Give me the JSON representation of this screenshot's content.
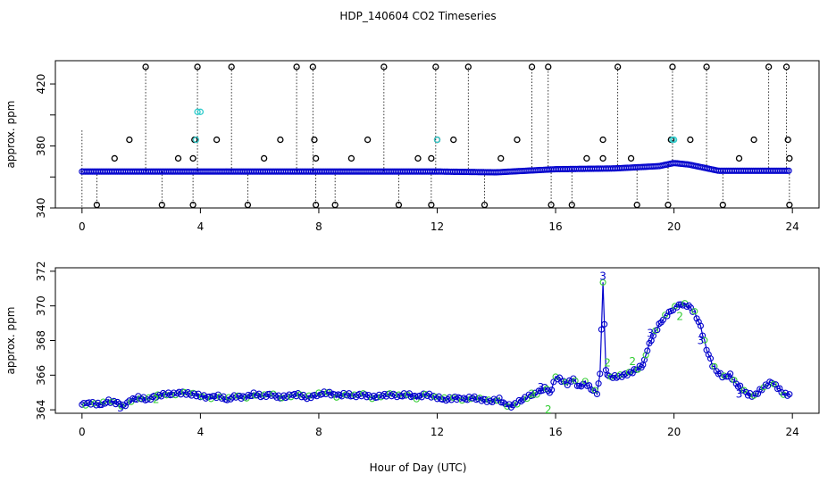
{
  "title": "HDP_140604  CO2 Timeseries",
  "xlabel": "Hour of Day (UTC)",
  "colors": {
    "dark": "#000000",
    "blue": "#0000cc",
    "cyan": "#33cccc",
    "green": "#33cc33"
  },
  "chart_data": [
    {
      "id": "top",
      "type": "scatter",
      "ylabel": "approx. ppm",
      "xlim": [
        0,
        24
      ],
      "ylim": [
        340,
        435
      ],
      "xticks": [
        0,
        4,
        8,
        12,
        16,
        20,
        24
      ],
      "yticks": [
        340,
        380,
        420
      ],
      "yticks_minor": [
        360,
        400
      ],
      "baseline": [
        [
          0,
          363.5
        ],
        [
          4,
          363.5
        ],
        [
          8,
          363.5
        ],
        [
          12,
          363.5
        ],
        [
          14,
          363
        ],
        [
          15.5,
          364.5
        ],
        [
          16,
          365
        ],
        [
          18,
          365.5
        ],
        [
          19.5,
          367
        ],
        [
          20,
          369
        ],
        [
          20.5,
          368
        ],
        [
          21.5,
          364
        ],
        [
          23,
          364
        ],
        [
          23.8,
          364
        ]
      ],
      "spikes_high": [
        2.15,
        3.9,
        5.05,
        7.25,
        7.8,
        10.2,
        11.95,
        13.05,
        15.2,
        15.75,
        18.1,
        19.95,
        21.1,
        23.2,
        23.8
      ],
      "spikes_low": [
        0.5,
        2.7,
        3.75,
        5.6,
        7.9,
        8.55,
        10.7,
        11.8,
        13.6,
        15.85,
        16.55,
        18.75,
        19.8,
        21.65,
        23.9
      ],
      "mid_high": [
        1.6,
        3.8,
        4.55,
        6.7,
        7.85,
        9.65,
        12.0,
        12.55,
        14.7,
        17.6,
        19.9,
        20.55,
        22.7,
        23.85
      ],
      "mid_low": [
        1.1,
        3.25,
        3.75,
        6.15,
        7.9,
        9.1,
        11.35,
        11.8,
        14.15,
        17.05,
        17.6,
        18.55,
        22.2,
        23.9
      ],
      "cyan_high": [
        3.9,
        4.0
      ],
      "cyan_mid": [
        3.85,
        12.0,
        19.95,
        20.0
      ]
    },
    {
      "id": "bottom",
      "type": "line",
      "ylabel": "approx. ppm",
      "xlim": [
        0,
        24
      ],
      "ylim": [
        363.8,
        372.2
      ],
      "xticks": [
        0,
        4,
        8,
        12,
        16,
        20,
        24
      ],
      "yticks": [
        364,
        366,
        368,
        370,
        372
      ],
      "series": [
        {
          "name": "ppm",
          "points": [
            [
              0.0,
              364.3
            ],
            [
              0.3,
              364.4
            ],
            [
              0.6,
              364.3
            ],
            [
              0.9,
              364.5
            ],
            [
              1.2,
              364.4
            ],
            [
              1.4,
              364.2
            ],
            [
              1.6,
              364.5
            ],
            [
              1.9,
              364.7
            ],
            [
              2.2,
              364.6
            ],
            [
              2.5,
              364.8
            ],
            [
              2.8,
              364.9
            ],
            [
              3.1,
              364.9
            ],
            [
              3.4,
              365.0
            ],
            [
              3.7,
              364.9
            ],
            [
              3.8,
              364.9
            ],
            [
              4.0,
              364.8
            ],
            [
              4.3,
              364.7
            ],
            [
              4.6,
              364.8
            ],
            [
              4.9,
              364.6
            ],
            [
              5.2,
              364.8
            ],
            [
              5.5,
              364.7
            ],
            [
              5.8,
              364.9
            ],
            [
              6.1,
              364.8
            ],
            [
              6.4,
              364.9
            ],
            [
              6.7,
              364.7
            ],
            [
              7.0,
              364.8
            ],
            [
              7.3,
              364.9
            ],
            [
              7.6,
              364.7
            ],
            [
              7.8,
              364.8
            ],
            [
              8.0,
              364.9
            ],
            [
              8.3,
              365.0
            ],
            [
              8.6,
              364.8
            ],
            [
              8.9,
              364.9
            ],
            [
              9.2,
              364.8
            ],
            [
              9.5,
              364.9
            ],
            [
              9.8,
              364.7
            ],
            [
              10.1,
              364.8
            ],
            [
              10.4,
              364.9
            ],
            [
              10.7,
              364.8
            ],
            [
              11.0,
              364.9
            ],
            [
              11.3,
              364.7
            ],
            [
              11.6,
              364.9
            ],
            [
              11.8,
              364.8
            ],
            [
              12.0,
              364.7
            ],
            [
              12.3,
              364.6
            ],
            [
              12.6,
              364.7
            ],
            [
              12.9,
              364.6
            ],
            [
              13.2,
              364.7
            ],
            [
              13.5,
              364.6
            ],
            [
              13.8,
              364.5
            ],
            [
              14.1,
              364.6
            ],
            [
              14.3,
              364.3
            ],
            [
              14.5,
              364.2
            ],
            [
              14.7,
              364.4
            ],
            [
              14.9,
              364.6
            ],
            [
              15.1,
              364.8
            ],
            [
              15.3,
              364.9
            ],
            [
              15.5,
              365.1
            ],
            [
              15.7,
              365.3
            ],
            [
              15.8,
              364.9
            ],
            [
              16.0,
              365.9
            ],
            [
              16.2,
              365.7
            ],
            [
              16.4,
              365.5
            ],
            [
              16.6,
              365.8
            ],
            [
              16.8,
              365.3
            ],
            [
              17.0,
              365.6
            ],
            [
              17.2,
              365.2
            ],
            [
              17.4,
              365.0
            ],
            [
              17.5,
              366.0
            ],
            [
              17.6,
              371.4
            ],
            [
              17.7,
              366.3
            ],
            [
              17.8,
              365.9
            ],
            [
              18.0,
              365.9
            ],
            [
              18.3,
              366.0
            ],
            [
              18.6,
              366.2
            ],
            [
              18.9,
              366.5
            ],
            [
              19.0,
              366.8
            ],
            [
              19.1,
              367.5
            ],
            [
              19.3,
              368.3
            ],
            [
              19.5,
              368.9
            ],
            [
              19.7,
              369.4
            ],
            [
              19.9,
              369.7
            ],
            [
              20.1,
              370.0
            ],
            [
              20.3,
              370.1
            ],
            [
              20.5,
              370.0
            ],
            [
              20.7,
              369.6
            ],
            [
              20.9,
              368.8
            ],
            [
              21.1,
              367.5
            ],
            [
              21.3,
              366.6
            ],
            [
              21.5,
              366.1
            ],
            [
              21.7,
              365.9
            ],
            [
              21.9,
              366.0
            ],
            [
              22.1,
              365.5
            ],
            [
              22.3,
              365.2
            ],
            [
              22.5,
              364.9
            ],
            [
              22.7,
              364.8
            ],
            [
              22.9,
              365.1
            ],
            [
              23.1,
              365.4
            ],
            [
              23.3,
              365.6
            ],
            [
              23.5,
              365.3
            ],
            [
              23.7,
              364.9
            ],
            [
              23.9,
              364.9
            ]
          ]
        }
      ],
      "labels": [
        {
          "text": "3",
          "x": 17.6,
          "y": 371.7,
          "color": "blue"
        },
        {
          "text": "2",
          "x": 17.75,
          "y": 366.7,
          "color": "green"
        },
        {
          "text": "2",
          "x": 18.6,
          "y": 366.8,
          "color": "green"
        },
        {
          "text": "2",
          "x": 15.75,
          "y": 364.0,
          "color": "green"
        },
        {
          "text": "2",
          "x": 15.2,
          "y": 364.9,
          "color": "green"
        },
        {
          "text": "3",
          "x": 15.5,
          "y": 365.3,
          "color": "blue"
        },
        {
          "text": "3",
          "x": 20.9,
          "y": 368.0,
          "color": "blue"
        },
        {
          "text": "2",
          "x": 20.2,
          "y": 369.4,
          "color": "green"
        },
        {
          "text": "3",
          "x": 19.2,
          "y": 368.4,
          "color": "blue"
        },
        {
          "text": "3",
          "x": 22.2,
          "y": 364.9,
          "color": "blue"
        },
        {
          "text": "3",
          "x": 1.3,
          "y": 364.1,
          "color": "blue"
        },
        {
          "text": "2",
          "x": 2.5,
          "y": 364.6,
          "color": "green"
        }
      ]
    }
  ]
}
